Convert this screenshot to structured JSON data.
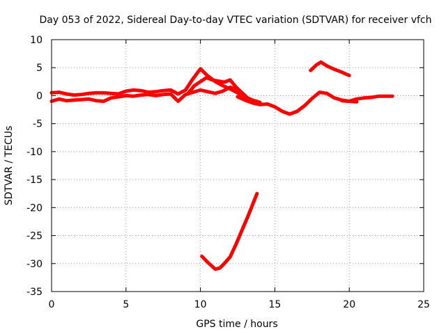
{
  "chart_data": {
    "type": "line",
    "title": "Day 053 of 2022, Sidereal Day-to-day VTEC variation (SDTVAR) for receiver vfch",
    "xlabel": "GPS time / hours",
    "ylabel": "SDTVAR / TECUs",
    "xlim": [
      0,
      25
    ],
    "ylim": [
      -35,
      10
    ],
    "x_ticks": [
      0,
      5,
      10,
      15,
      20,
      25
    ],
    "y_ticks": [
      10,
      5,
      0,
      -5,
      -10,
      -15,
      -20,
      -25,
      -30,
      -35
    ],
    "grid": true,
    "legend": "none",
    "color": "#ff0000",
    "series": [
      {
        "name": "arc-main-upper",
        "x": [
          0,
          0.5,
          1,
          1.5,
          2,
          2.5,
          3,
          3.5,
          4,
          4.5,
          5,
          5.5,
          6,
          6.5,
          7,
          7.5,
          8,
          8.5,
          9,
          9.5,
          10,
          10.5,
          11,
          11.5,
          12,
          12.5,
          13,
          13.5,
          14
        ],
        "y": [
          0.5,
          0.6,
          0.3,
          0.1,
          0.2,
          0.4,
          0.5,
          0.5,
          0.4,
          0.3,
          0.8,
          1.0,
          0.9,
          0.6,
          0.7,
          0.9,
          1.0,
          0.3,
          1.0,
          3.0,
          4.8,
          3.5,
          2.5,
          1.8,
          1.2,
          0.5,
          -0.5,
          -1.2,
          -1.6
        ]
      },
      {
        "name": "arc-main-lower",
        "x": [
          0,
          0.5,
          1,
          1.5,
          2,
          2.5,
          3,
          3.5,
          4,
          4.5,
          5,
          5.5,
          6,
          6.5,
          7,
          7.5,
          8,
          8.5,
          9,
          9.5,
          10,
          10.5,
          11,
          11.5,
          12,
          12.5,
          13,
          13.5,
          14
        ],
        "y": [
          -1.0,
          -0.6,
          -0.9,
          -0.8,
          -0.7,
          -0.6,
          -0.9,
          -1.0,
          -0.4,
          -0.2,
          0.0,
          -0.1,
          0.1,
          0.2,
          0.0,
          0.2,
          0.3,
          -1.0,
          0.2,
          0.6,
          1.0,
          0.7,
          0.4,
          0.8,
          1.5,
          1.0,
          -0.2,
          -0.8,
          -1.2
        ]
      },
      {
        "name": "arc-mid",
        "x": [
          9.2,
          9.6,
          10,
          10.4,
          10.8,
          11.2,
          11.6,
          12,
          12.4,
          12.8,
          13.2,
          13.6
        ],
        "y": [
          0.5,
          1.8,
          2.5,
          3.2,
          2.8,
          2.6,
          2.4,
          2.8,
          1.5,
          0.5,
          -0.5,
          -1.0
        ]
      },
      {
        "name": "arc-afternoon",
        "x": [
          12.5,
          13,
          13.5,
          14,
          14.5,
          15,
          15.5,
          16,
          16.5,
          17,
          17.5,
          18,
          18.5,
          19,
          19.5,
          20,
          20.5
        ],
        "y": [
          -0.2,
          -0.8,
          -1.3,
          -1.6,
          -1.5,
          -2.0,
          -2.8,
          -3.3,
          -2.8,
          -1.8,
          -0.5,
          0.6,
          0.4,
          -0.4,
          -0.8,
          -1.0,
          -1.1
        ]
      },
      {
        "name": "arc-evening",
        "x": [
          19.5,
          20,
          20.5,
          21,
          21.5,
          22,
          22.5,
          22.9
        ],
        "y": [
          -0.9,
          -1.0,
          -0.6,
          -0.4,
          -0.3,
          -0.1,
          -0.1,
          -0.1
        ]
      },
      {
        "name": "arc-high",
        "x": [
          17.4,
          17.8,
          18.1,
          18.5,
          19,
          19.5,
          20
        ],
        "y": [
          4.5,
          5.5,
          6.0,
          5.3,
          4.7,
          4.2,
          3.6
        ]
      },
      {
        "name": "arc-deep",
        "x": [
          10.1,
          10.5,
          11.0,
          11.3,
          11.6,
          12.0,
          12.4,
          12.8,
          13.2,
          13.5,
          13.8
        ],
        "y": [
          -28.7,
          -29.8,
          -31.0,
          -30.8,
          -30.0,
          -28.8,
          -26.5,
          -24.0,
          -21.5,
          -19.5,
          -17.5
        ]
      }
    ]
  }
}
